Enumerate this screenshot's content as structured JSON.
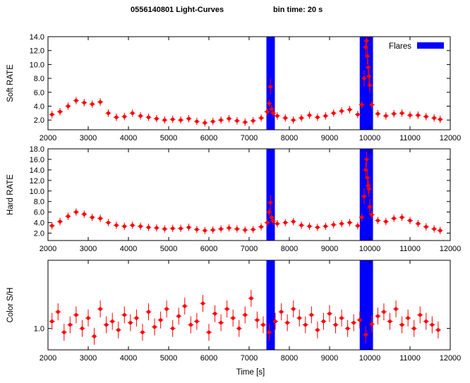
{
  "title_left": "0556140801 Light-Curves",
  "title_right": "bin time: 20 s",
  "xlabel": "Time [s]",
  "x_ticks": [
    "2000",
    "3000",
    "4000",
    "5000",
    "6000",
    "7000",
    "8000",
    "9000",
    "10000",
    "11000",
    "12000"
  ],
  "legend": {
    "label": "Flares",
    "color": "#0000ff"
  },
  "colors": {
    "data": "#ff0000",
    "flare": "#0000ff"
  },
  "chart_data": [
    {
      "type": "scatter",
      "ylabel": "Soft RATE",
      "xlim": [
        2000,
        12000
      ],
      "ylim": [
        0.6,
        14.0
      ],
      "y_ticks": [
        "2.0",
        "4.0",
        "6.0",
        "8.0",
        "10.0",
        "12.0",
        "14.0"
      ],
      "flare_intervals": [
        [
          7430,
          7640
        ],
        [
          9750,
          10080
        ]
      ],
      "legend_position": "top-right",
      "series": [
        {
          "x": [
            2100,
            2300,
            2500,
            2700,
            2900,
            3100,
            3300,
            3500,
            3700,
            3900,
            4100,
            4300,
            4500,
            4700,
            4900,
            5100,
            5300,
            5500,
            5700,
            5900,
            6100,
            6300,
            6500,
            6700,
            6900,
            7100,
            7300,
            7450,
            7500,
            7530,
            7560,
            7600,
            7700,
            7900,
            8100,
            8300,
            8500,
            8700,
            8900,
            9100,
            9300,
            9500,
            9700,
            9800,
            9860,
            9900,
            9920,
            9940,
            9960,
            9980,
            10000,
            10050,
            10200,
            10400,
            10600,
            10800,
            11000,
            11200,
            11400,
            11600,
            11750
          ],
          "y": [
            2.8,
            3.2,
            4.0,
            4.8,
            4.5,
            4.3,
            4.6,
            3.0,
            2.4,
            2.5,
            3.0,
            2.6,
            2.4,
            2.2,
            2.0,
            2.1,
            2.0,
            2.2,
            1.8,
            1.6,
            1.8,
            2.0,
            2.2,
            1.9,
            1.7,
            1.9,
            2.3,
            3.2,
            4.4,
            6.8,
            3.6,
            3.0,
            2.6,
            2.3,
            2.0,
            2.3,
            2.7,
            2.4,
            2.6,
            3.0,
            3.3,
            3.5,
            2.8,
            4.2,
            8.0,
            12.5,
            13.4,
            11.2,
            9.6,
            8.3,
            7.0,
            4.2,
            2.9,
            2.6,
            2.9,
            3.0,
            2.7,
            2.7,
            2.5,
            2.3,
            2.1
          ]
        }
      ]
    },
    {
      "type": "scatter",
      "ylabel": "Hard RATE",
      "xlim": [
        2000,
        12000
      ],
      "ylim": [
        0.6,
        18.0
      ],
      "y_ticks": [
        "2.0",
        "4.0",
        "6.0",
        "8.0",
        "10.0",
        "12.0",
        "14.0",
        "16.0",
        "18.0"
      ],
      "flare_intervals": [
        [
          7430,
          7640
        ],
        [
          9750,
          10080
        ]
      ],
      "series": [
        {
          "x": [
            2100,
            2300,
            2500,
            2700,
            2900,
            3100,
            3300,
            3500,
            3700,
            3900,
            4100,
            4300,
            4500,
            4700,
            4900,
            5100,
            5300,
            5500,
            5700,
            5900,
            6100,
            6300,
            6500,
            6700,
            6900,
            7100,
            7300,
            7450,
            7500,
            7530,
            7560,
            7600,
            7700,
            7900,
            8100,
            8300,
            8500,
            8700,
            8900,
            9100,
            9300,
            9500,
            9700,
            9800,
            9860,
            9900,
            9920,
            9940,
            9960,
            9980,
            10000,
            10050,
            10200,
            10400,
            10600,
            10800,
            11000,
            11200,
            11400,
            11600,
            11750
          ],
          "y": [
            3.4,
            4.2,
            5.2,
            6.0,
            5.6,
            5.0,
            4.8,
            4.0,
            3.5,
            3.3,
            3.5,
            3.3,
            3.1,
            3.0,
            2.8,
            2.9,
            2.9,
            3.1,
            2.7,
            2.5,
            2.6,
            2.8,
            3.0,
            2.8,
            2.6,
            2.7,
            3.2,
            4.0,
            6.0,
            7.8,
            5.0,
            4.3,
            3.8,
            4.0,
            4.2,
            3.5,
            3.3,
            3.1,
            3.3,
            3.6,
            3.8,
            4.0,
            3.4,
            5.0,
            9.0,
            14.0,
            16.0,
            12.5,
            11.0,
            10.4,
            7.0,
            5.5,
            4.4,
            4.2,
            4.8,
            5.0,
            4.4,
            3.8,
            3.2,
            2.8,
            2.5
          ]
        }
      ]
    },
    {
      "type": "scatter",
      "ylabel": "Color S/H",
      "xlim": [
        2000,
        12000
      ],
      "ylim": [
        0.75,
        2.5
      ],
      "yscale": "log",
      "y_ticks": [
        "1.0"
      ],
      "flare_intervals": [
        [
          7430,
          7640
        ],
        [
          9750,
          10080
        ]
      ],
      "series": [
        {
          "x": [
            2100,
            2250,
            2400,
            2550,
            2700,
            2850,
            3000,
            3150,
            3300,
            3450,
            3600,
            3750,
            3900,
            4050,
            4200,
            4350,
            4500,
            4650,
            4800,
            4950,
            5100,
            5250,
            5400,
            5550,
            5700,
            5850,
            6000,
            6150,
            6300,
            6450,
            6600,
            6750,
            6900,
            7050,
            7200,
            7350,
            7500,
            7650,
            7800,
            7950,
            8100,
            8250,
            8400,
            8550,
            8700,
            8850,
            9000,
            9150,
            9300,
            9450,
            9600,
            9750,
            9900,
            10050,
            10200,
            10350,
            10500,
            10650,
            10800,
            10950,
            11100,
            11250,
            11400,
            11550,
            11700
          ],
          "y": [
            1.1,
            1.25,
            0.95,
            1.05,
            1.2,
            1.0,
            1.15,
            0.9,
            1.3,
            1.05,
            1.1,
            0.98,
            1.2,
            1.08,
            1.15,
            0.95,
            1.25,
            1.02,
            1.12,
            1.3,
            1.0,
            1.18,
            1.35,
            1.05,
            1.1,
            1.4,
            0.95,
            1.22,
            1.08,
            1.3,
            1.15,
            1.0,
            1.2,
            1.5,
            1.12,
            1.05,
            0.95,
            1.1,
            1.25,
            1.08,
            1.3,
            1.15,
            1.05,
            1.2,
            0.98,
            1.1,
            1.22,
            1.05,
            1.15,
            1.0,
            1.08,
            1.12,
            0.92,
            1.06,
            1.18,
            1.25,
            1.1,
            1.3,
            1.05,
            1.15,
            1.0,
            1.2,
            1.1,
            1.05,
            0.98
          ]
        }
      ]
    }
  ]
}
